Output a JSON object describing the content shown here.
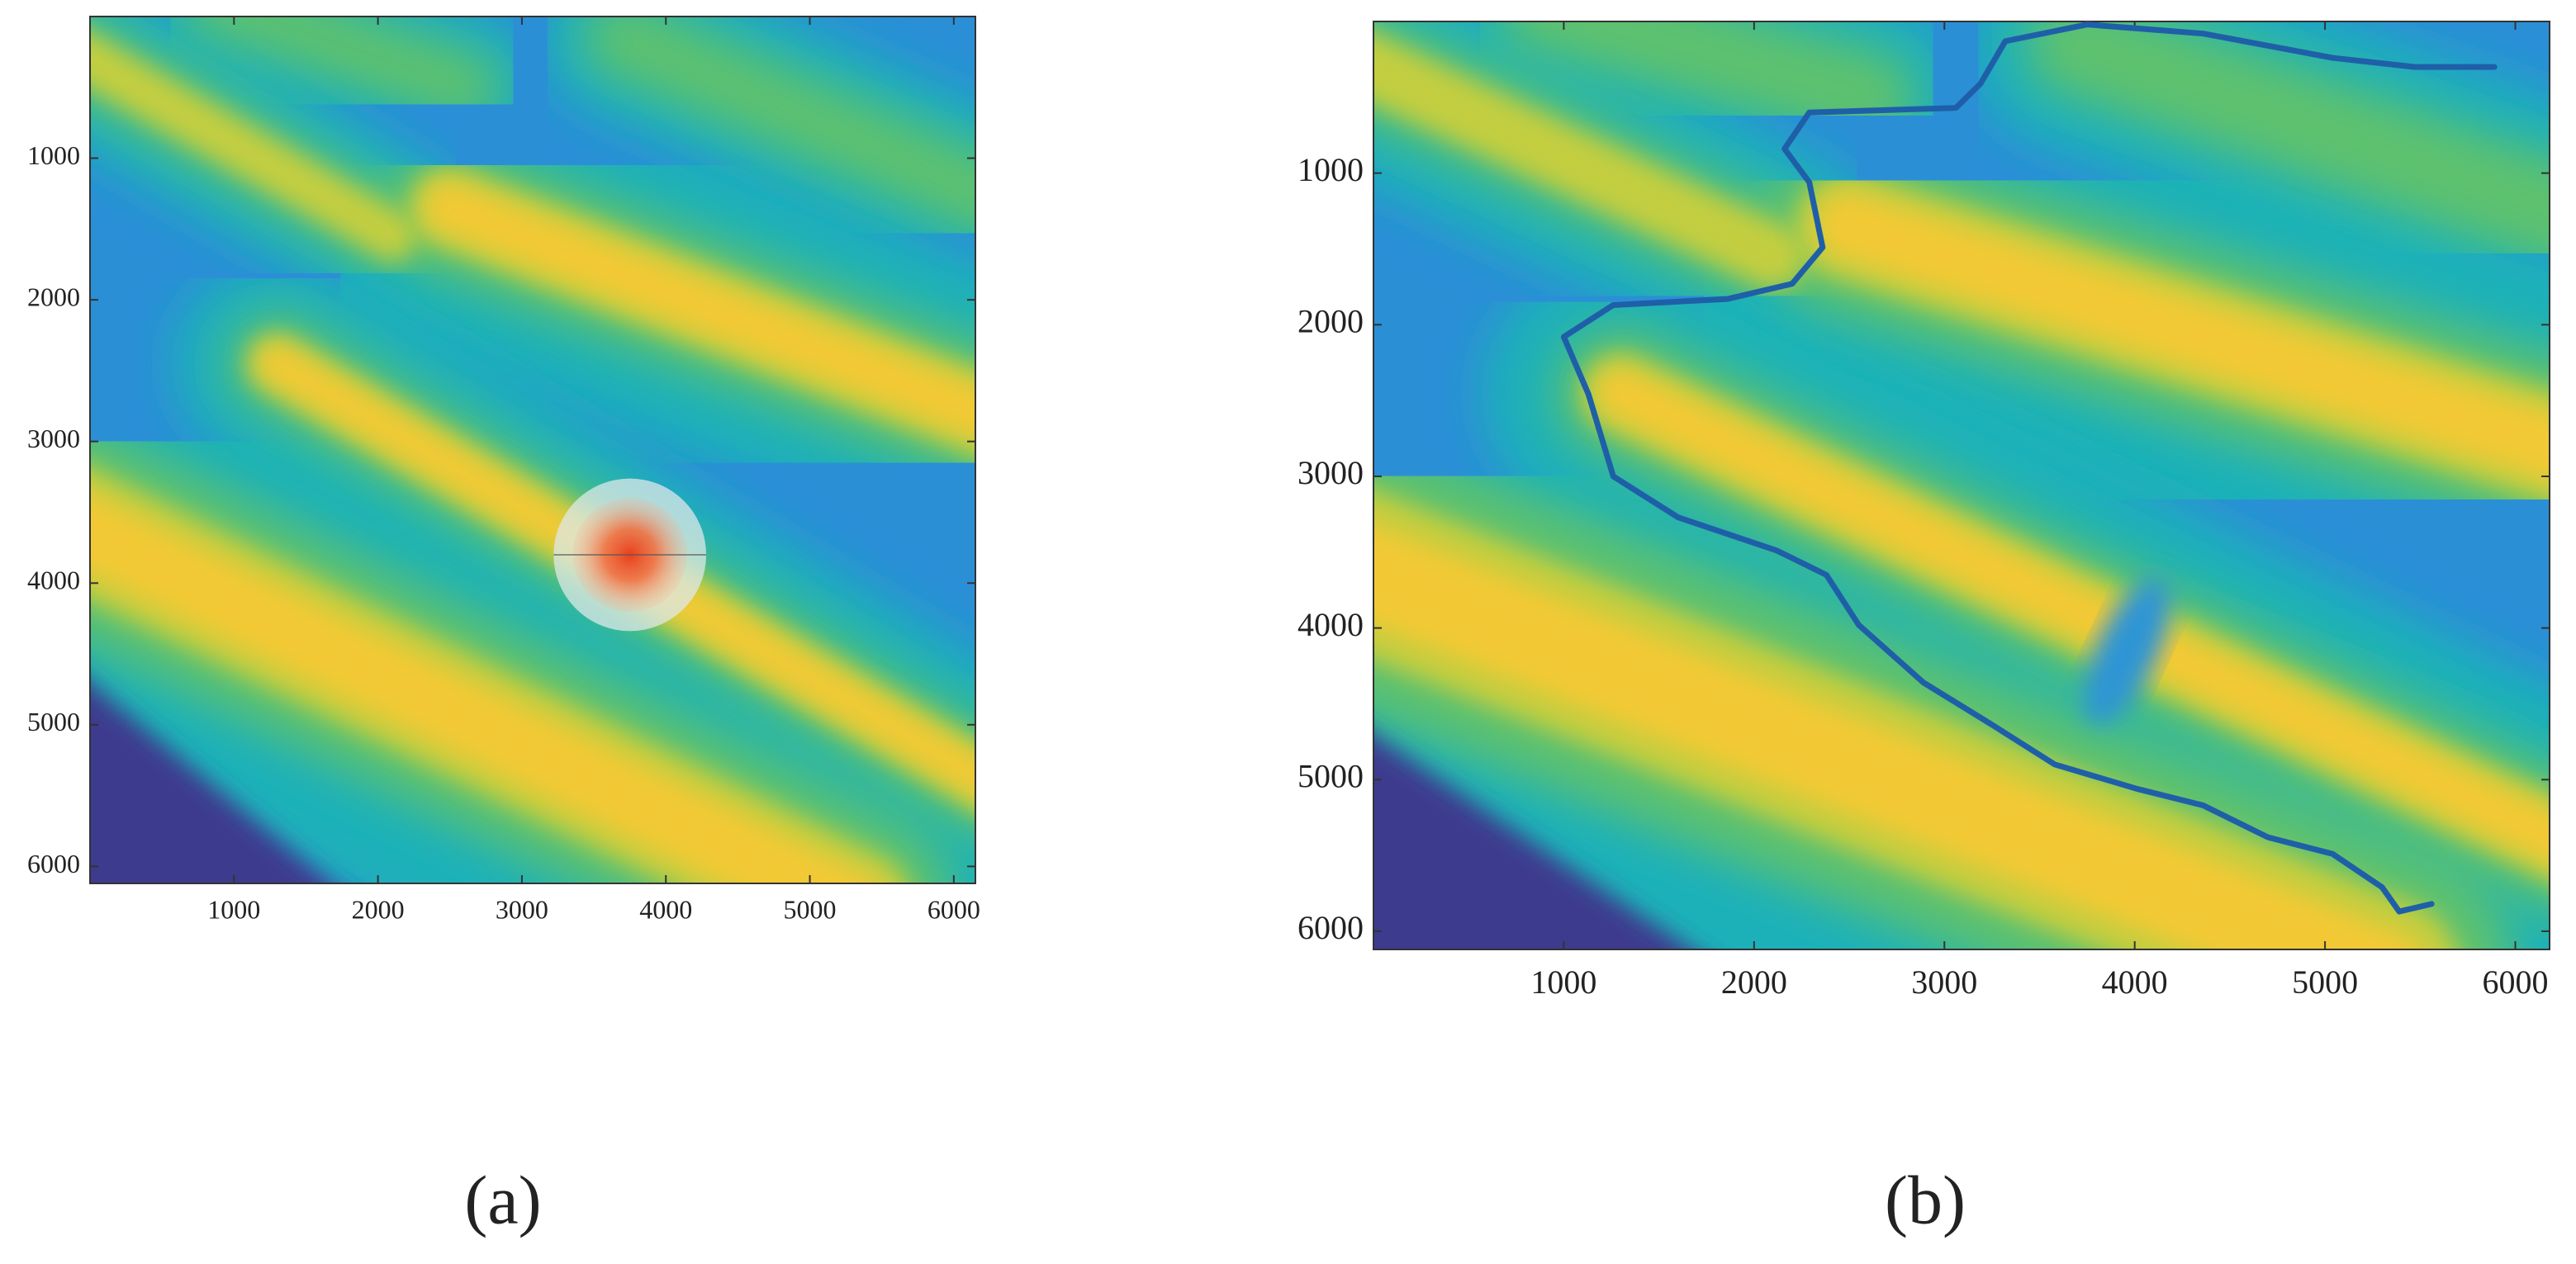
{
  "chart_data": [
    {
      "type": "heatmap",
      "caption": "(a)",
      "xlim": [
        0,
        6150
      ],
      "ylim": [
        0,
        6120
      ],
      "y_reversed": true,
      "xticks": [
        1000,
        2000,
        3000,
        4000,
        5000,
        6000
      ],
      "yticks": [
        1000,
        2000,
        3000,
        4000,
        5000,
        6000
      ]
    },
    {
      "type": "heatmap",
      "caption": "(b)",
      "xlim": [
        0,
        6180
      ],
      "ylim": [
        0,
        6120
      ],
      "y_reversed": true,
      "xticks": [
        1000,
        2000,
        3000,
        4000,
        5000,
        6000
      ],
      "yticks": [
        1000,
        2000,
        3000,
        4000,
        5000,
        6000
      ],
      "series": [
        {
          "color": "#1f5fa8",
          "x": [
            5890,
            5470,
            5040,
            4360,
            3750,
            3320,
            3190,
            3060,
            2290,
            2160,
            2290,
            2360,
            2200,
            1860,
            1260,
            1000,
            1130,
            1260,
            1600,
            2120,
            2380,
            2550,
            2890,
            3240,
            3580,
            4010,
            4360,
            4700,
            5040,
            5300,
            5390,
            5560
          ],
          "values": [
            300,
            300,
            240,
            80,
            20,
            130,
            410,
            570,
            600,
            840,
            1060,
            1490,
            1730,
            1830,
            1870,
            2080,
            2460,
            3000,
            3270,
            3490,
            3650,
            3980,
            4360,
            4630,
            4900,
            5060,
            5170,
            5380,
            5490,
            5710,
            5870,
            5820
          ]
        }
      ]
    }
  ]
}
